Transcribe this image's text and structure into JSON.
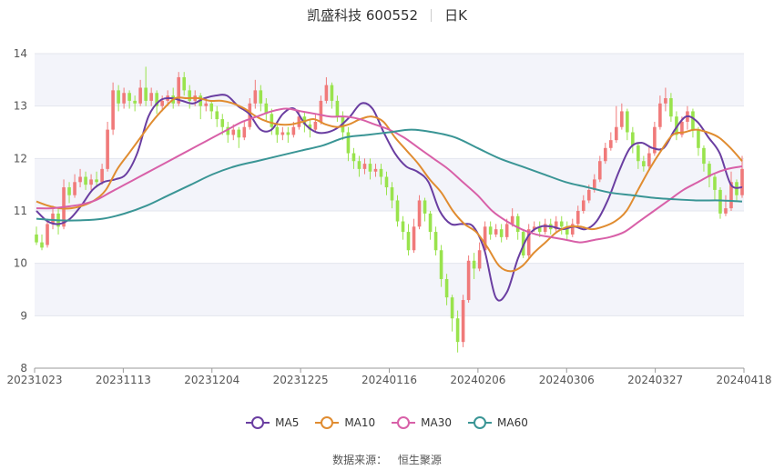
{
  "title": {
    "stock": "凯盛科技 600552",
    "period": "日K"
  },
  "source": {
    "label": "数据来源：",
    "value": "恒生聚源"
  },
  "chart_data": {
    "type": "candlestick",
    "ylim": [
      8,
      14
    ],
    "yticks": [
      8,
      9,
      10,
      11,
      12,
      13,
      14
    ],
    "xticks": [
      "20231023",
      "20231113",
      "20231204",
      "20231225",
      "20240116",
      "20240206",
      "20240306",
      "20240327",
      "20240418"
    ],
    "grid": true,
    "legend_placement": "bottom",
    "up_color": "#f07a7a",
    "down_color": "#99e34d",
    "candles_ohlc": [
      [
        10.55,
        10.4,
        10.7,
        10.35
      ],
      [
        10.4,
        10.3,
        10.55,
        10.25
      ],
      [
        10.35,
        10.75,
        10.85,
        10.3
      ],
      [
        10.75,
        10.95,
        11.1,
        10.65
      ],
      [
        10.95,
        10.7,
        11.05,
        10.55
      ],
      [
        10.7,
        11.45,
        11.6,
        10.65
      ],
      [
        11.45,
        11.3,
        11.55,
        11.15
      ],
      [
        11.3,
        11.55,
        11.7,
        11.25
      ],
      [
        11.55,
        11.65,
        11.8,
        11.45
      ],
      [
        11.65,
        11.5,
        11.75,
        11.4
      ],
      [
        11.5,
        11.6,
        11.7,
        11.4
      ],
      [
        11.6,
        11.55,
        11.75,
        11.45
      ],
      [
        11.55,
        11.8,
        11.9,
        11.5
      ],
      [
        11.8,
        12.55,
        12.7,
        11.75
      ],
      [
        12.55,
        13.3,
        13.45,
        12.45
      ],
      [
        13.3,
        13.05,
        13.4,
        12.9
      ],
      [
        13.05,
        13.25,
        13.35,
        12.95
      ],
      [
        13.25,
        13.1,
        13.3,
        12.95
      ],
      [
        13.1,
        13.05,
        13.2,
        12.9
      ],
      [
        13.05,
        13.35,
        13.5,
        13.0
      ],
      [
        13.35,
        13.1,
        13.75,
        13.0
      ],
      [
        13.1,
        13.25,
        13.35,
        13.0
      ],
      [
        13.25,
        13.0,
        13.3,
        12.85
      ],
      [
        13.0,
        13.1,
        13.2,
        12.9
      ],
      [
        13.1,
        13.2,
        13.3,
        13.0
      ],
      [
        13.2,
        13.05,
        13.35,
        12.95
      ],
      [
        13.05,
        13.55,
        13.65,
        13.0
      ],
      [
        13.55,
        13.3,
        13.65,
        13.2
      ],
      [
        13.3,
        13.1,
        13.4,
        12.95
      ],
      [
        13.1,
        13.2,
        13.3,
        13.0
      ],
      [
        13.2,
        13.0,
        13.25,
        12.75
      ],
      [
        13.0,
        13.05,
        13.15,
        12.9
      ],
      [
        13.05,
        12.9,
        13.1,
        12.75
      ],
      [
        12.9,
        12.75,
        13.0,
        12.6
      ],
      [
        12.75,
        12.6,
        12.85,
        12.45
      ],
      [
        12.6,
        12.45,
        12.7,
        12.3
      ],
      [
        12.45,
        12.55,
        12.65,
        12.35
      ],
      [
        12.55,
        12.4,
        12.6,
        12.2
      ],
      [
        12.4,
        12.6,
        12.7,
        12.35
      ],
      [
        12.6,
        13.05,
        13.15,
        12.55
      ],
      [
        13.05,
        13.3,
        13.5,
        12.95
      ],
      [
        13.3,
        13.05,
        13.4,
        12.9
      ],
      [
        13.05,
        12.85,
        13.15,
        12.7
      ],
      [
        12.85,
        12.6,
        12.95,
        12.45
      ],
      [
        12.6,
        12.45,
        12.7,
        12.3
      ],
      [
        12.45,
        12.5,
        12.6,
        12.35
      ],
      [
        12.5,
        12.45,
        12.6,
        12.3
      ],
      [
        12.45,
        12.6,
        12.7,
        12.4
      ],
      [
        12.6,
        12.8,
        12.9,
        12.55
      ],
      [
        12.8,
        12.65,
        12.9,
        12.5
      ],
      [
        12.65,
        12.55,
        12.75,
        12.4
      ],
      [
        12.55,
        12.7,
        12.85,
        12.5
      ],
      [
        12.7,
        13.1,
        13.2,
        12.65
      ],
      [
        13.1,
        13.4,
        13.55,
        13.05
      ],
      [
        13.4,
        13.1,
        13.45,
        12.95
      ],
      [
        13.1,
        12.8,
        13.2,
        12.7
      ],
      [
        12.8,
        12.5,
        12.9,
        12.35
      ],
      [
        12.5,
        12.1,
        12.6,
        11.95
      ],
      [
        12.1,
        11.95,
        12.2,
        11.8
      ],
      [
        11.95,
        11.8,
        12.05,
        11.65
      ],
      [
        11.8,
        11.9,
        12.0,
        11.7
      ],
      [
        11.9,
        11.75,
        12.0,
        11.6
      ],
      [
        11.75,
        11.8,
        11.9,
        11.65
      ],
      [
        11.8,
        11.65,
        11.9,
        11.5
      ],
      [
        11.65,
        11.45,
        11.75,
        11.3
      ],
      [
        11.45,
        11.2,
        11.55,
        11.05
      ],
      [
        11.2,
        10.8,
        11.3,
        10.7
      ],
      [
        10.8,
        10.6,
        10.9,
        10.45
      ],
      [
        10.6,
        10.25,
        10.75,
        10.15
      ],
      [
        10.25,
        10.7,
        10.85,
        10.2
      ],
      [
        10.7,
        11.2,
        11.3,
        10.65
      ],
      [
        11.2,
        10.95,
        11.25,
        10.8
      ],
      [
        10.95,
        10.6,
        11.0,
        10.45
      ],
      [
        10.6,
        10.25,
        10.7,
        10.15
      ],
      [
        10.25,
        9.7,
        10.35,
        9.55
      ],
      [
        9.7,
        9.35,
        9.8,
        9.2
      ],
      [
        9.35,
        8.95,
        9.4,
        8.7
      ],
      [
        8.95,
        8.5,
        9.1,
        8.3
      ],
      [
        8.5,
        9.3,
        9.4,
        8.4
      ],
      [
        9.3,
        10.05,
        10.15,
        9.25
      ],
      [
        10.05,
        9.9,
        10.2,
        9.7
      ],
      [
        9.9,
        10.25,
        10.4,
        9.85
      ],
      [
        10.25,
        10.7,
        10.8,
        10.2
      ],
      [
        10.7,
        10.55,
        10.8,
        10.45
      ],
      [
        10.55,
        10.65,
        10.75,
        10.5
      ],
      [
        10.65,
        10.5,
        10.75,
        10.4
      ],
      [
        10.5,
        10.75,
        10.85,
        10.45
      ],
      [
        10.75,
        10.9,
        11.05,
        10.7
      ],
      [
        10.9,
        10.6,
        10.95,
        10.45
      ],
      [
        10.6,
        10.15,
        10.65,
        10.1
      ],
      [
        10.15,
        10.65,
        10.75,
        10.1
      ],
      [
        10.65,
        10.7,
        10.8,
        10.6
      ],
      [
        10.7,
        10.6,
        10.8,
        10.5
      ],
      [
        10.6,
        10.75,
        10.85,
        10.55
      ],
      [
        10.75,
        10.65,
        10.85,
        10.55
      ],
      [
        10.65,
        10.8,
        10.9,
        10.6
      ],
      [
        10.8,
        10.7,
        10.9,
        10.55
      ],
      [
        10.7,
        10.55,
        10.8,
        10.45
      ],
      [
        10.55,
        10.75,
        10.85,
        10.5
      ],
      [
        10.75,
        11.0,
        11.1,
        10.7
      ],
      [
        11.0,
        11.2,
        11.3,
        10.95
      ],
      [
        11.2,
        11.4,
        11.5,
        11.15
      ],
      [
        11.4,
        11.6,
        11.7,
        11.35
      ],
      [
        11.6,
        11.95,
        12.05,
        11.55
      ],
      [
        11.95,
        12.2,
        12.3,
        11.9
      ],
      [
        12.2,
        12.35,
        12.5,
        12.15
      ],
      [
        12.35,
        12.6,
        13.0,
        12.3
      ],
      [
        12.6,
        12.9,
        13.05,
        12.55
      ],
      [
        12.9,
        12.5,
        12.95,
        12.35
      ],
      [
        12.5,
        12.25,
        12.6,
        12.1
      ],
      [
        12.25,
        11.95,
        12.3,
        11.8
      ],
      [
        11.95,
        11.85,
        12.05,
        11.75
      ],
      [
        11.85,
        12.1,
        12.25,
        11.8
      ],
      [
        12.1,
        12.6,
        12.7,
        12.05
      ],
      [
        12.6,
        13.05,
        13.2,
        12.55
      ],
      [
        13.05,
        13.15,
        13.35,
        12.9
      ],
      [
        13.15,
        12.8,
        13.25,
        12.7
      ],
      [
        12.8,
        12.45,
        12.9,
        12.35
      ],
      [
        12.45,
        12.7,
        12.8,
        12.4
      ],
      [
        12.7,
        12.9,
        13.0,
        12.55
      ],
      [
        12.9,
        12.55,
        12.95,
        12.4
      ],
      [
        12.55,
        12.2,
        12.6,
        12.05
      ],
      [
        12.2,
        11.9,
        12.25,
        11.75
      ],
      [
        11.9,
        11.65,
        11.95,
        11.45
      ],
      [
        11.65,
        11.4,
        11.7,
        11.2
      ],
      [
        11.4,
        10.95,
        11.45,
        10.85
      ],
      [
        10.95,
        11.05,
        11.3,
        10.9
      ],
      [
        11.05,
        11.55,
        11.75,
        11.0
      ],
      [
        11.55,
        11.3,
        11.6,
        11.2
      ],
      [
        11.3,
        11.8,
        12.05,
        11.25
      ]
    ],
    "series": [
      {
        "name": "MA5",
        "color": "#6a3ea1",
        "values": [
          11.0,
          10.8,
          10.75,
          10.85,
          11.1,
          11.4,
          11.55,
          11.6,
          11.7,
          12.1,
          12.8,
          13.1,
          13.15,
          13.1,
          13.05,
          13.15,
          13.2,
          13.2,
          13.0,
          12.85,
          12.55,
          12.55,
          12.85,
          12.95,
          12.65,
          12.5,
          12.5,
          12.6,
          12.8,
          13.05,
          12.95,
          12.5,
          12.1,
          11.85,
          11.75,
          11.55,
          11.0,
          10.75,
          10.75,
          10.7,
          10.25,
          9.35,
          9.45,
          10.1,
          10.55,
          10.7,
          10.7,
          10.65,
          10.7,
          10.65,
          10.8,
          11.2,
          11.75,
          12.2,
          12.3,
          12.2,
          12.2,
          12.55,
          12.8,
          12.7,
          12.4,
          12.1,
          11.5,
          11.45
        ]
      },
      {
        "name": "MA10",
        "color": "#e08c30",
        "values": [
          11.18,
          11.1,
          11.05,
          11.05,
          11.1,
          11.2,
          11.4,
          11.8,
          12.1,
          12.4,
          12.7,
          12.95,
          13.15,
          13.15,
          13.15,
          13.1,
          13.1,
          13.05,
          12.95,
          12.8,
          12.7,
          12.65,
          12.65,
          12.7,
          12.75,
          12.65,
          12.6,
          12.65,
          12.75,
          12.8,
          12.7,
          12.4,
          12.15,
          11.9,
          11.6,
          11.35,
          11.0,
          10.75,
          10.6,
          10.3,
          9.95,
          9.85,
          9.95,
          10.2,
          10.4,
          10.6,
          10.7,
          10.7,
          10.65,
          10.7,
          10.8,
          11.0,
          11.4,
          11.8,
          12.15,
          12.45,
          12.5,
          12.55,
          12.5,
          12.4,
          12.2,
          11.95
        ]
      },
      {
        "name": "MA30",
        "color": "#d860a8",
        "values": [
          11.05,
          11.05,
          11.08,
          11.12,
          11.2,
          11.35,
          11.5,
          11.65,
          11.8,
          11.95,
          12.1,
          12.25,
          12.4,
          12.55,
          12.7,
          12.8,
          12.9,
          12.95,
          12.9,
          12.85,
          12.8,
          12.8,
          12.75,
          12.65,
          12.55,
          12.4,
          12.2,
          12.0,
          11.8,
          11.55,
          11.3,
          11.0,
          10.8,
          10.65,
          10.55,
          10.5,
          10.45,
          10.4,
          10.45,
          10.5,
          10.6,
          10.8,
          11.0,
          11.2,
          11.4,
          11.55,
          11.7,
          11.8,
          11.85
        ]
      },
      {
        "name": "MA60",
        "color": "#3a9595",
        "values": [
          10.85,
          10.82,
          10.82,
          10.85,
          10.95,
          11.1,
          11.3,
          11.5,
          11.7,
          11.85,
          11.95,
          12.05,
          12.15,
          12.25,
          12.4,
          12.45,
          12.5,
          12.55,
          12.5,
          12.4,
          12.2,
          12.0,
          11.85,
          11.7,
          11.55,
          11.45,
          11.35,
          11.3,
          11.25,
          11.22,
          11.2,
          11.2,
          11.18
        ]
      }
    ]
  }
}
